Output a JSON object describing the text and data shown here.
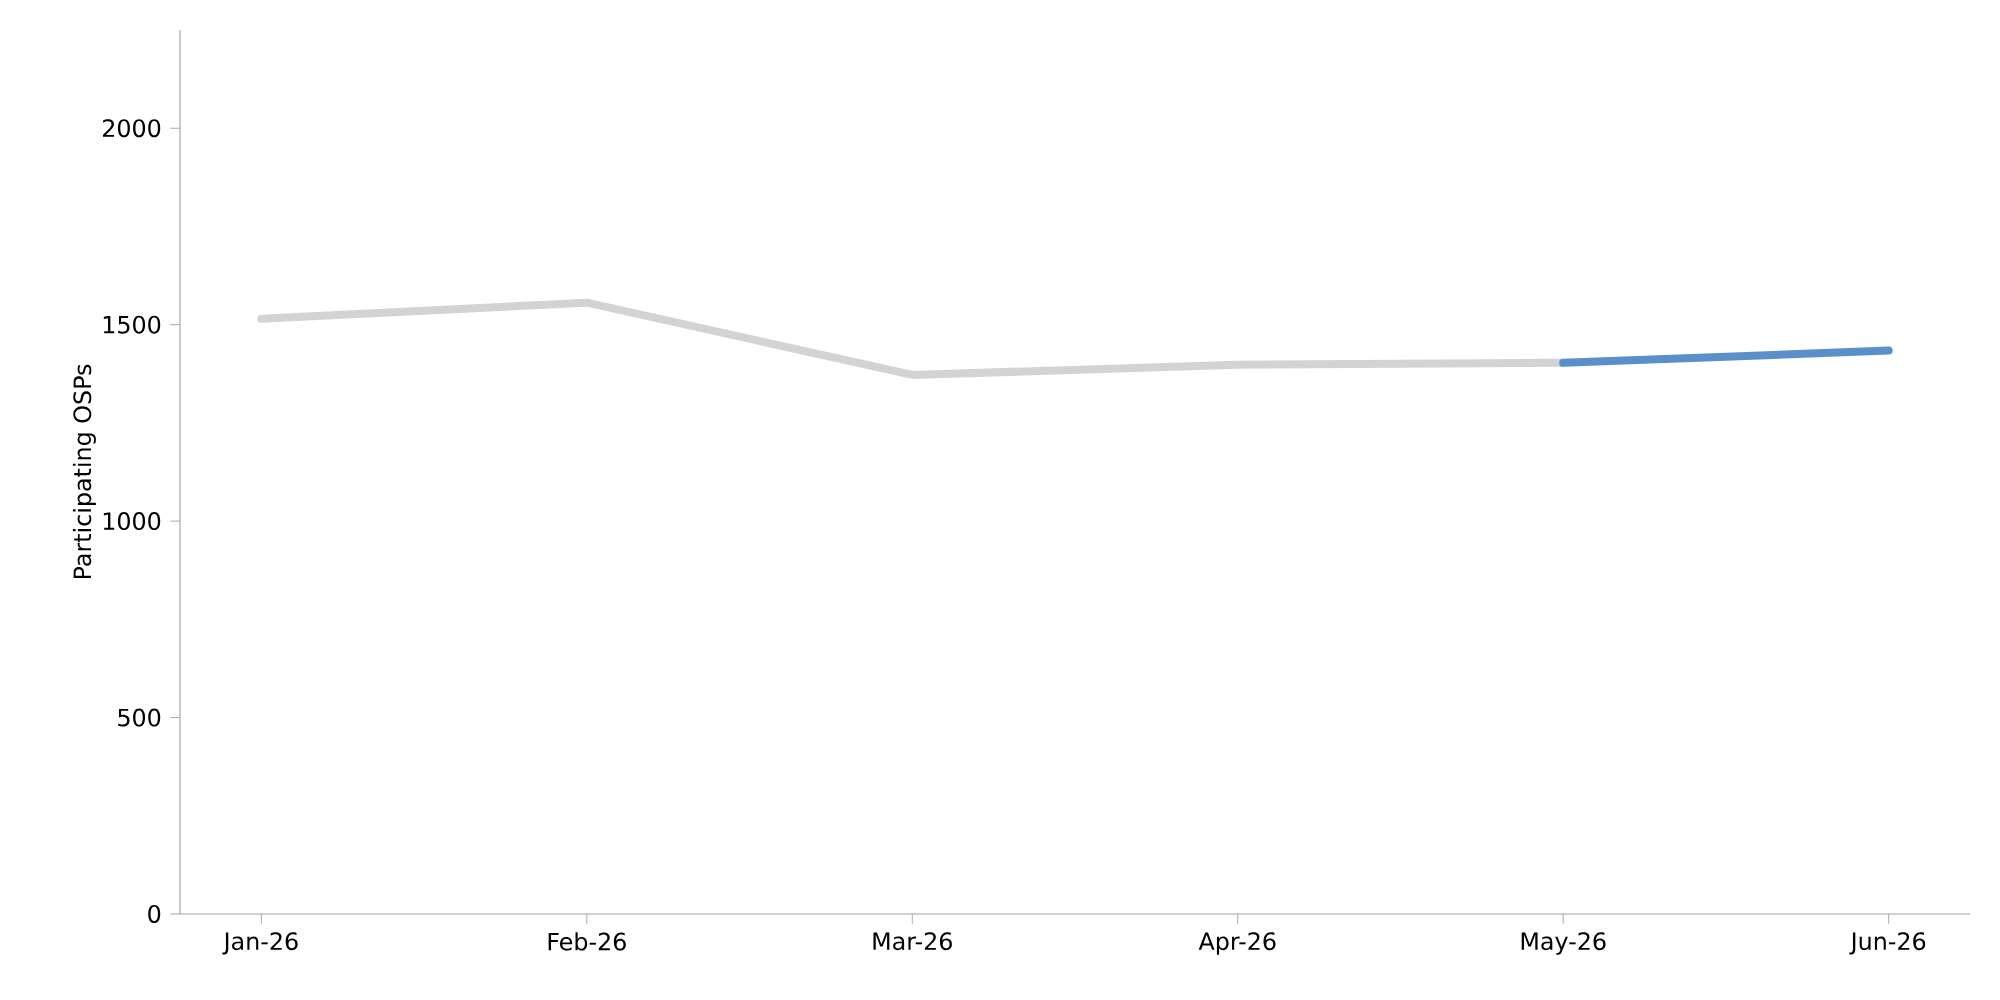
{
  "chart_data": {
    "type": "line",
    "ylabel": "Participating OSPs",
    "categories": [
      "Jan-26",
      "Feb-26",
      "Mar-26",
      "Apr-26",
      "May-26",
      "Jun-26"
    ],
    "series": [
      {
        "color": "#d3d3d3",
        "values": [
          1515,
          1556,
          1372,
          1398,
          1403,
          null
        ]
      },
      {
        "color": "#5b8fc9",
        "values": [
          null,
          null,
          null,
          null,
          1403,
          1434
        ]
      }
    ],
    "ylim": [
      0,
      2250
    ],
    "yticks": [
      0,
      500,
      1000,
      1500,
      2000
    ],
    "grid": false
  }
}
